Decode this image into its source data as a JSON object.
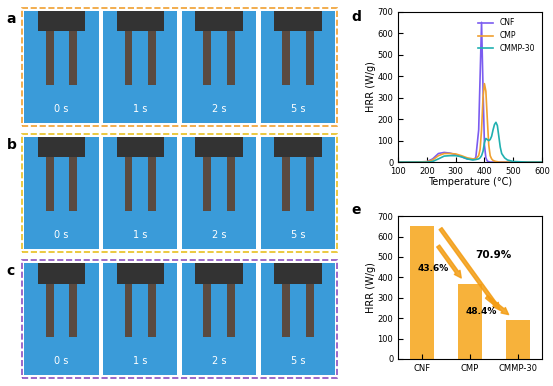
{
  "photos": {
    "panels": [
      {
        "label": "a",
        "color": "#f0a030",
        "times": [
          "0 s",
          "1 s",
          "2 s",
          "5 s"
        ]
      },
      {
        "label": "b",
        "color": "#e8c020",
        "times": [
          "0 s",
          "1 s",
          "2 s",
          "5 s"
        ]
      },
      {
        "label": "c",
        "color": "#8a4fc0",
        "times": [
          "0 s",
          "1 s",
          "2 s",
          "5 s"
        ]
      }
    ]
  },
  "chart_data": [
    {
      "type": "line",
      "title": "d",
      "x_label": "Temperature (°C)",
      "y_label": "HRR (W/g)",
      "x": [
        100,
        150,
        200,
        220,
        240,
        260,
        280,
        300,
        320,
        340,
        360,
        370,
        380,
        385,
        390,
        395,
        400,
        405,
        410,
        415,
        420,
        425,
        430,
        435,
        440,
        445,
        450,
        455,
        460,
        470,
        480,
        500,
        550,
        600
      ],
      "series": [
        {
          "name": "CNF",
          "color": "#7b5cf0",
          "values": [
            0,
            0,
            2,
            15,
            40,
            45,
            42,
            35,
            25,
            15,
            12,
            20,
            150,
            400,
            650,
            350,
            80,
            20,
            5,
            2,
            0,
            0,
            0,
            0,
            0,
            0,
            0,
            0,
            0,
            0,
            0,
            0,
            0,
            0
          ]
        },
        {
          "name": "CMP",
          "color": "#f0a030",
          "values": [
            0,
            0,
            2,
            10,
            30,
            40,
            40,
            38,
            30,
            20,
            15,
            15,
            30,
            60,
            150,
            300,
            365,
            330,
            200,
            80,
            30,
            15,
            8,
            5,
            3,
            2,
            0,
            0,
            0,
            0,
            0,
            0,
            0,
            0
          ]
        },
        {
          "name": "CMMP-30",
          "color": "#20b0b0",
          "values": [
            0,
            0,
            0,
            3,
            15,
            28,
            30,
            30,
            25,
            15,
            10,
            12,
            15,
            20,
            30,
            50,
            90,
            110,
            105,
            100,
            105,
            120,
            150,
            175,
            185,
            170,
            120,
            70,
            40,
            20,
            10,
            3,
            0,
            0
          ]
        }
      ],
      "xlim": [
        100,
        600
      ],
      "xticks": [
        100,
        200,
        300,
        400,
        500,
        600
      ],
      "ylim": [
        0,
        700
      ],
      "yticks": [
        0,
        100,
        200,
        300,
        400,
        500,
        600,
        700
      ],
      "legend": "upper right"
    },
    {
      "type": "bar",
      "title": "e",
      "y_label": "HRR (W/g)",
      "categories": [
        "CNF",
        "CMP",
        "CMMP-30"
      ],
      "values": [
        650,
        366,
        189
      ],
      "color": "#f7b23b",
      "ylim": [
        0,
        700
      ],
      "yticks": [
        0,
        100,
        200,
        300,
        400,
        500,
        600,
        700
      ],
      "annotations": [
        {
          "text": "70.9%",
          "from": "CNF",
          "to": "CMMP-30"
        },
        {
          "text": "43.6%",
          "from": "CNF",
          "to": "CMP"
        },
        {
          "text": "48.4%",
          "from": "CMP",
          "to": "CMMP-30"
        }
      ]
    }
  ]
}
